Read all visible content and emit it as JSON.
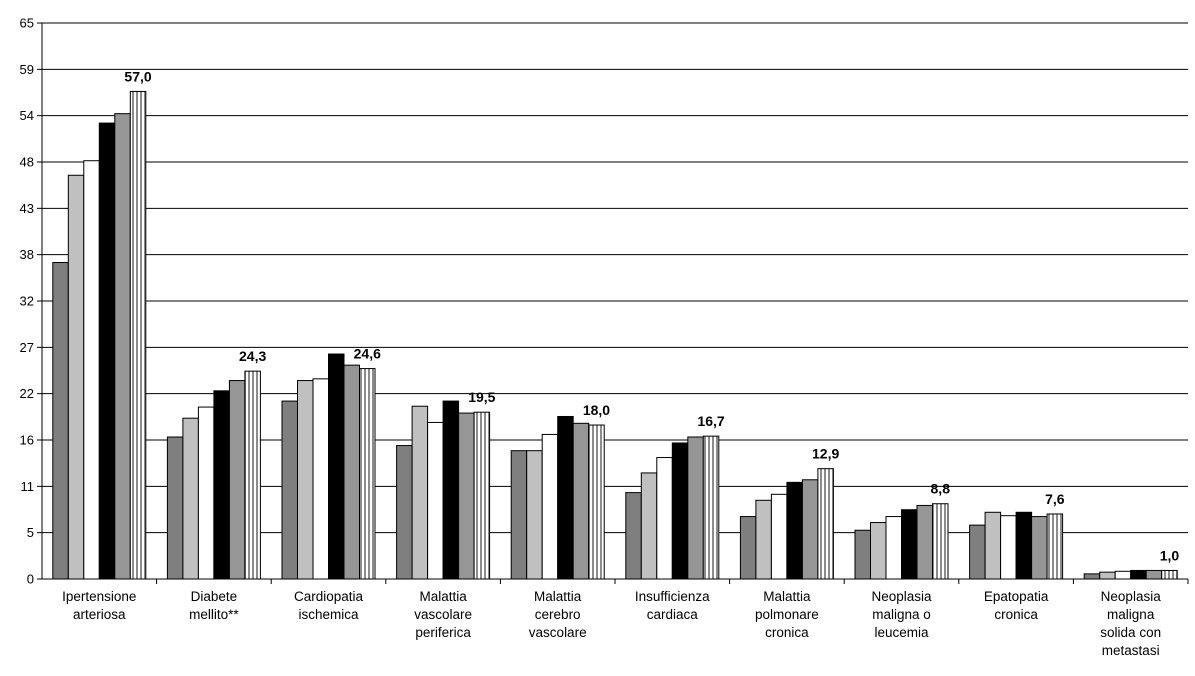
{
  "chart_data": {
    "type": "bar",
    "title": "",
    "xlabel": "",
    "ylabel": "",
    "ylim": [
      0,
      65
    ],
    "y_ticks": [
      "0",
      "5",
      "11",
      "16",
      "22",
      "27",
      "32",
      "38",
      "43",
      "48",
      "54",
      "59",
      "65"
    ],
    "grid": true,
    "legend": false,
    "categories": [
      [
        "Ipertensione",
        "arteriosa"
      ],
      [
        "Diabete",
        "mellito**"
      ],
      [
        "Cardiopatia",
        "ischemica"
      ],
      [
        "Malattia",
        "vascolare",
        "periferica"
      ],
      [
        "Malattia",
        "cerebro",
        "vascolare"
      ],
      [
        "Insufficienza",
        "cardiaca"
      ],
      [
        "Malattia",
        "polmonare",
        "cronica"
      ],
      [
        "Neoplasia",
        "maligna o",
        "leucemia"
      ],
      [
        "Epatopatia",
        "cronica"
      ],
      [
        "Neoplasia",
        "maligna",
        "solida con",
        "metastasi"
      ]
    ],
    "series": [
      {
        "style": "dark-gray",
        "values": [
          37.0,
          16.6,
          20.8,
          15.6,
          15.0,
          10.1,
          7.3,
          5.7,
          6.3,
          0.6
        ]
      },
      {
        "style": "light-gray",
        "values": [
          47.2,
          18.8,
          23.2,
          20.2,
          15.0,
          12.4,
          9.2,
          6.6,
          7.8,
          0.8
        ]
      },
      {
        "style": "white",
        "values": [
          48.9,
          20.1,
          23.4,
          18.3,
          16.9,
          14.2,
          9.9,
          7.3,
          7.4,
          0.9
        ]
      },
      {
        "style": "black",
        "values": [
          53.3,
          22.0,
          26.3,
          20.8,
          19.0,
          15.9,
          11.3,
          8.1,
          7.8,
          1.0
        ]
      },
      {
        "style": "gray",
        "values": [
          54.4,
          23.2,
          25.0,
          19.4,
          18.2,
          16.6,
          11.6,
          8.6,
          7.3,
          1.0
        ]
      },
      {
        "style": "striped",
        "values": [
          57.0,
          24.3,
          24.6,
          19.5,
          18.0,
          16.7,
          12.9,
          8.8,
          7.6,
          1.0
        ]
      }
    ],
    "data_labels": [
      "57,0",
      "24,3",
      "24,6",
      "19,5",
      "18,0",
      "16,7",
      "12,9",
      "8,8",
      "7,6",
      "1,0"
    ]
  },
  "colors": {
    "dark-gray": "#7f7f7f",
    "light-gray": "#c0c0c0",
    "white": "#ffffff",
    "black": "#000000",
    "gray": "#969696",
    "stripe-dark": "#8c8c8c",
    "stripe-light": "#ffffff",
    "grid": "#000000"
  }
}
